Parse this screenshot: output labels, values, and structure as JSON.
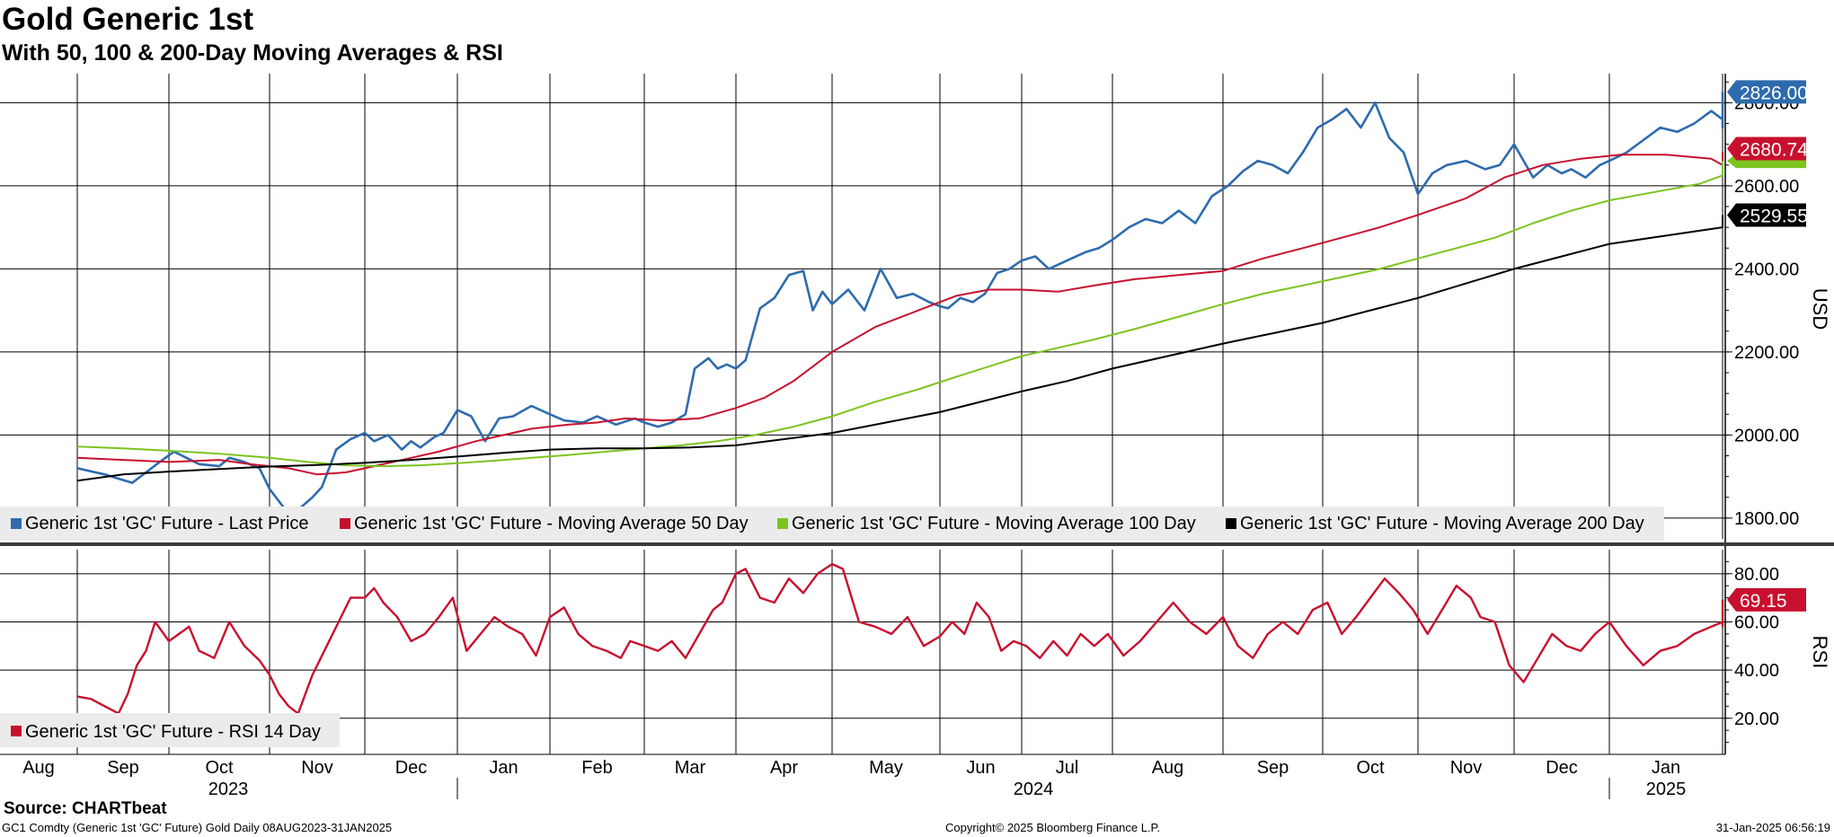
{
  "title": "Gold Generic 1st",
  "subtitle": "With 50, 100 & 200-Day Moving Averages & RSI",
  "source": "Source: CHARTbeat",
  "footer": {
    "left": "GC1 Comdty (Generic 1st 'GC' Future) Gold  Daily 08AUG2023-31JAN2025",
    "center": "Copyright© 2025 Bloomberg Finance L.P.",
    "right": "31-Jan-2025 06:56:19"
  },
  "colors": {
    "last_price": "#2e6bad",
    "ma50": "#c8102e",
    "ma100": "#7cc41f",
    "ma200": "#000000",
    "rsi": "#c8102e"
  },
  "chart_data": [
    {
      "type": "line",
      "title": "Gold Generic 1st",
      "ylabel": "USD",
      "ylim": [
        1750,
        2870
      ],
      "yticks": [
        "1800.00",
        "2000.00",
        "2200.00",
        "2400.00",
        "2600.00",
        "2800.00"
      ],
      "months": [
        "Aug",
        "Sep",
        "Oct",
        "Nov",
        "Dec",
        "Jan",
        "Feb",
        "Mar",
        "Apr",
        "May",
        "Jun",
        "Jul",
        "Aug",
        "Sep",
        "Oct",
        "Nov",
        "Dec",
        "Jan"
      ],
      "years": [
        "2023",
        "2024",
        "2025"
      ],
      "legend": [
        "Generic 1st 'GC' Future - Last Price",
        "Generic 1st 'GC' Future - Moving Average 50 Day",
        "Generic 1st 'GC' Future - Moving Average 100 Day",
        "Generic 1st 'GC' Future - Moving Average 200 Day"
      ],
      "series": [
        {
          "name": "Generic 1st 'GC' Future - Last Price",
          "last_label": "2826.00",
          "x": [
            0,
            0.3,
            0.6,
            0.9,
            1.05,
            1.3,
            1.5,
            1.6,
            1.75,
            1.9,
            2.0,
            2.15,
            2.3,
            2.45,
            2.55,
            2.7,
            2.85,
            3.0,
            3.1,
            3.25,
            3.4,
            3.5,
            3.6,
            3.75,
            3.85,
            4.0,
            4.15,
            4.3,
            4.45,
            4.6,
            4.8,
            5.0,
            5.15,
            5.35,
            5.5,
            5.7,
            5.9,
            6.0,
            6.15,
            6.3,
            6.45,
            6.55,
            6.7,
            6.8,
            6.9,
            7.0,
            7.1,
            7.25,
            7.4,
            7.55,
            7.7,
            7.8,
            7.9,
            8.0,
            8.15,
            8.3,
            8.45,
            8.6,
            8.75,
            8.9,
            9.0,
            9.1,
            9.25,
            9.4,
            9.55,
            9.7,
            9.85,
            10.0,
            10.15,
            10.3,
            10.5,
            10.7,
            10.85,
            11.0,
            11.15,
            11.3,
            11.45,
            11.6,
            11.75,
            11.9,
            12.05,
            12.2,
            12.35,
            12.5,
            12.65,
            12.8,
            12.95,
            13.1,
            13.25,
            13.4,
            13.55,
            13.7,
            13.85,
            14.0,
            14.15,
            14.3,
            14.5,
            14.7,
            14.85,
            15.0,
            15.1,
            15.2,
            15.35,
            15.5,
            15.6,
            15.75,
            15.9,
            16.0,
            16.15,
            16.3,
            16.45,
            16.6,
            16.75,
            16.9,
            17.05,
            17.2,
            17.35,
            17.5,
            17.6,
            17.65,
            17.75
          ],
          "values": [
            1920,
            1905,
            1885,
            1935,
            1960,
            1930,
            1925,
            1945,
            1935,
            1920,
            1870,
            1825,
            1820,
            1850,
            1875,
            1965,
            1990,
            2005,
            1985,
            2000,
            1965,
            1985,
            1970,
            1995,
            2005,
            2060,
            2045,
            1985,
            2040,
            2045,
            2070,
            2050,
            2035,
            2030,
            2045,
            2025,
            2040,
            2030,
            2020,
            2030,
            2050,
            2160,
            2185,
            2160,
            2170,
            2160,
            2180,
            2305,
            2330,
            2385,
            2395,
            2300,
            2345,
            2315,
            2350,
            2300,
            2400,
            2330,
            2340,
            2320,
            2310,
            2305,
            2330,
            2320,
            2340,
            2390,
            2400,
            2420,
            2430,
            2400,
            2420,
            2440,
            2450,
            2470,
            2500,
            2520,
            2510,
            2540,
            2510,
            2575,
            2600,
            2635,
            2660,
            2650,
            2630,
            2680,
            2740,
            2760,
            2785,
            2740,
            2800,
            2715,
            2680,
            2580,
            2630,
            2650,
            2660,
            2640,
            2650,
            2700,
            2660,
            2620,
            2650,
            2630,
            2640,
            2620,
            2650,
            2660,
            2680,
            2710,
            2740,
            2730,
            2750,
            2780,
            2760,
            2750,
            2790,
            2770,
            2740,
            2780,
            2826
          ]
        },
        {
          "name": "Generic 1st 'GC' Future - Moving Average 50 Day",
          "last_label": "2680.74",
          "x": [
            0,
            0.5,
            1.0,
            1.5,
            1.8,
            2.2,
            2.5,
            2.8,
            3.1,
            3.5,
            3.8,
            4.2,
            4.5,
            4.8,
            5.2,
            5.5,
            5.8,
            6.2,
            6.6,
            7.0,
            7.3,
            7.6,
            8.0,
            8.4,
            8.8,
            9.2,
            9.6,
            10.0,
            10.4,
            10.8,
            11.2,
            11.6,
            12.0,
            12.4,
            12.8,
            13.2,
            13.6,
            14.0,
            14.5,
            14.9,
            15.3,
            15.7,
            16.1,
            16.5,
            16.9,
            17.2,
            17.5,
            17.75
          ],
          "values": [
            1945,
            1940,
            1935,
            1940,
            1930,
            1920,
            1905,
            1910,
            1925,
            1945,
            1960,
            1985,
            2000,
            2015,
            2025,
            2030,
            2040,
            2035,
            2040,
            2065,
            2090,
            2130,
            2200,
            2260,
            2300,
            2335,
            2350,
            2350,
            2345,
            2360,
            2375,
            2385,
            2395,
            2425,
            2450,
            2475,
            2500,
            2530,
            2570,
            2620,
            2650,
            2665,
            2675,
            2675,
            2665,
            2650,
            2655,
            2680.74
          ]
        },
        {
          "name": "Generic 1st 'GC' Future - Moving Average 100 Day",
          "last_label": "",
          "x": [
            0,
            0.5,
            1.0,
            1.5,
            2.0,
            2.4,
            2.8,
            3.2,
            3.6,
            4.0,
            4.4,
            4.8,
            5.2,
            5.6,
            6.0,
            6.4,
            6.8,
            7.2,
            7.6,
            8.0,
            8.4,
            8.8,
            9.2,
            9.6,
            10.0,
            10.4,
            10.8,
            11.2,
            11.6,
            12.0,
            12.4,
            12.8,
            13.2,
            13.6,
            14.0,
            14.4,
            14.8,
            15.2,
            15.6,
            16.0,
            16.4,
            16.8,
            17.2,
            17.5,
            17.75
          ],
          "values": [
            1972,
            1968,
            1962,
            1955,
            1945,
            1935,
            1927,
            1925,
            1927,
            1932,
            1938,
            1945,
            1952,
            1960,
            1968,
            1975,
            1985,
            2000,
            2020,
            2045,
            2080,
            2110,
            2140,
            2165,
            2190,
            2210,
            2230,
            2255,
            2285,
            2315,
            2340,
            2360,
            2380,
            2400,
            2425,
            2450,
            2475,
            2510,
            2540,
            2565,
            2585,
            2605,
            2625,
            2640,
            2660
          ]
        },
        {
          "name": "Generic 1st 'GC' Future - Moving Average 200 Day",
          "last_label": "2529.55",
          "x": [
            0,
            0.5,
            1.0,
            1.5,
            2.0,
            2.5,
            3.0,
            3.5,
            4.0,
            4.5,
            5.0,
            5.5,
            6.0,
            6.5,
            7.0,
            7.5,
            8.0,
            8.5,
            9.0,
            9.5,
            10.0,
            10.5,
            11.0,
            11.5,
            12.0,
            12.5,
            13.0,
            13.5,
            14.0,
            14.5,
            15.0,
            15.5,
            16.0,
            16.5,
            17.0,
            17.4,
            17.75
          ],
          "values": [
            1890,
            1905,
            1912,
            1918,
            1924,
            1928,
            1933,
            1940,
            1948,
            1957,
            1965,
            1968,
            1968,
            1970,
            1975,
            1990,
            2005,
            2030,
            2055,
            2080,
            2105,
            2130,
            2160,
            2190,
            2220,
            2245,
            2270,
            2300,
            2330,
            2365,
            2400,
            2430,
            2460,
            2480,
            2500,
            2515,
            2529.55
          ]
        }
      ]
    },
    {
      "type": "line",
      "title": "RSI",
      "ylabel": "RSI",
      "ylim": [
        5,
        90
      ],
      "yticks": [
        "20.00",
        "40.00",
        "60.00",
        "80.00"
      ],
      "legend": [
        "Generic 1st 'GC' Future - RSI 14 Day"
      ],
      "series": [
        {
          "name": "Generic 1st 'GC' Future - RSI 14 Day",
          "last_label": "69.15",
          "x": [
            0,
            0.15,
            0.3,
            0.45,
            0.55,
            0.65,
            0.75,
            0.85,
            1.0,
            1.1,
            1.2,
            1.3,
            1.45,
            1.6,
            1.75,
            1.9,
            2.0,
            2.1,
            2.2,
            2.3,
            2.45,
            2.6,
            2.75,
            2.85,
            3.0,
            3.1,
            3.2,
            3.35,
            3.5,
            3.65,
            3.8,
            3.95,
            4.1,
            4.25,
            4.4,
            4.55,
            4.7,
            4.85,
            5.0,
            5.15,
            5.3,
            5.45,
            5.6,
            5.75,
            5.85,
            6.0,
            6.15,
            6.3,
            6.45,
            6.6,
            6.75,
            6.85,
            7.0,
            7.1,
            7.25,
            7.4,
            7.55,
            7.7,
            7.85,
            8.0,
            8.1,
            8.25,
            8.4,
            8.55,
            8.7,
            8.85,
            9.0,
            9.15,
            9.3,
            9.45,
            9.6,
            9.75,
            9.9,
            10.05,
            10.2,
            10.35,
            10.5,
            10.65,
            10.8,
            10.95,
            11.1,
            11.25,
            11.4,
            11.55,
            11.7,
            11.85,
            12.0,
            12.15,
            12.3,
            12.45,
            12.6,
            12.75,
            12.9,
            13.05,
            13.2,
            13.35,
            13.5,
            13.65,
            13.8,
            13.95,
            14.1,
            14.25,
            14.4,
            14.55,
            14.65,
            14.8,
            14.95,
            15.1,
            15.25,
            15.4,
            15.55,
            15.7,
            15.85,
            16.0,
            16.15,
            16.3,
            16.45,
            16.6,
            16.75,
            16.9,
            17.05,
            17.2,
            17.35,
            17.5,
            17.6,
            17.7,
            17.75
          ],
          "values": [
            29,
            28,
            25,
            22,
            30,
            42,
            48,
            60,
            52,
            55,
            58,
            48,
            45,
            60,
            50,
            44,
            38,
            30,
            25,
            22,
            38,
            50,
            62,
            70,
            70,
            74,
            68,
            62,
            52,
            55,
            62,
            70,
            48,
            55,
            62,
            58,
            55,
            46,
            62,
            66,
            55,
            50,
            48,
            45,
            52,
            50,
            48,
            52,
            45,
            55,
            65,
            68,
            80,
            82,
            70,
            68,
            78,
            72,
            80,
            84,
            82,
            60,
            58,
            55,
            62,
            50,
            54,
            60,
            55,
            68,
            62,
            48,
            52,
            50,
            45,
            52,
            46,
            55,
            50,
            55,
            46,
            52,
            60,
            68,
            60,
            55,
            62,
            50,
            45,
            55,
            60,
            55,
            65,
            68,
            55,
            62,
            70,
            78,
            72,
            65,
            55,
            65,
            75,
            70,
            62,
            60,
            42,
            35,
            45,
            55,
            50,
            48,
            55,
            60,
            50,
            42,
            48,
            50,
            55,
            58,
            60,
            65,
            68,
            62,
            65,
            58,
            69.15
          ]
        }
      ]
    }
  ]
}
